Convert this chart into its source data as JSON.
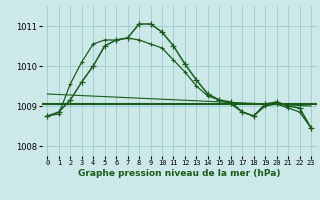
{
  "title": "Graphe pression niveau de la mer (hPa)",
  "bg_color": "#cce8e8",
  "grid_color": "#99cccc",
  "line_color": "#1a5c1a",
  "ylim": [
    1007.75,
    1011.5
  ],
  "yticks": [
    1008,
    1009,
    1010,
    1011
  ],
  "xlim": [
    -0.5,
    23.5
  ],
  "xticks": [
    0,
    1,
    2,
    3,
    4,
    5,
    6,
    7,
    8,
    9,
    10,
    11,
    12,
    13,
    14,
    15,
    16,
    17,
    18,
    19,
    20,
    21,
    22,
    23
  ],
  "series1_x": [
    0,
    1,
    2,
    3,
    4,
    5,
    6,
    7,
    8,
    9,
    10,
    11,
    12,
    13,
    14,
    15,
    16,
    17,
    18,
    19,
    20,
    21,
    22,
    23
  ],
  "series1_y": [
    1008.75,
    1008.85,
    1009.15,
    1009.6,
    1010.0,
    1010.5,
    1010.65,
    1010.7,
    1011.05,
    1011.05,
    1010.85,
    1010.5,
    1010.05,
    1009.65,
    1009.3,
    1009.15,
    1009.1,
    1008.85,
    1008.75,
    1009.05,
    1009.1,
    1009.0,
    1008.95,
    1008.45
  ],
  "series2_x": [
    0,
    1,
    2,
    3,
    4,
    5,
    6,
    7,
    8,
    9,
    10,
    11,
    12,
    13,
    14,
    15,
    16,
    17,
    18,
    19,
    20,
    21,
    22,
    23
  ],
  "series2_y": [
    1008.75,
    1008.8,
    1009.55,
    1010.1,
    1010.55,
    1010.65,
    1010.65,
    1010.7,
    1010.65,
    1010.55,
    1010.45,
    1010.15,
    1009.85,
    1009.5,
    1009.25,
    1009.15,
    1009.05,
    1008.85,
    1008.75,
    1009.0,
    1009.05,
    1008.95,
    1008.85,
    1008.45
  ],
  "flat_line_y": 1009.05,
  "diag_line_x0": 0,
  "diag_line_y0": 1009.3,
  "diag_line_x1": 23,
  "diag_line_y1": 1009.0
}
